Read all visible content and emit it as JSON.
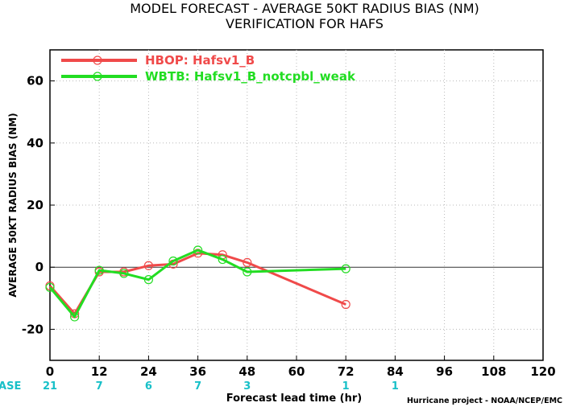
{
  "chart_data": {
    "type": "line",
    "title": "MODEL FORECAST - AVERAGE 50KT RADIUS BIAS (NM)",
    "subtitle": "VERIFICATION FOR HAFS",
    "xlabel": "Forecast lead time (hr)",
    "ylabel": "AVERAGE 50KT RADIUS BIAS (NM)",
    "xlim": [
      0,
      120
    ],
    "ylim": [
      -30,
      70
    ],
    "x_ticks": [
      0,
      12,
      24,
      36,
      48,
      60,
      72,
      84,
      96,
      108,
      120
    ],
    "y_ticks": [
      -20,
      0,
      20,
      40,
      60
    ],
    "grid": true,
    "legend_position": "top-left",
    "series": [
      {
        "name": "HBOP: Hafsv1_B",
        "color": "#f04a4a",
        "x": [
          0,
          6,
          12,
          18,
          24,
          30,
          36,
          42,
          48,
          72
        ],
        "y": [
          -6,
          -15,
          -1.5,
          -1.5,
          0.5,
          1,
          4.5,
          4,
          1.5,
          -12
        ]
      },
      {
        "name": "WBTB: Hafsv1_B_notcpbl_weak",
        "color": "#22dd22",
        "x": [
          0,
          6,
          12,
          18,
          24,
          30,
          36,
          42,
          48,
          72
        ],
        "y": [
          -6.5,
          -16,
          -1,
          -2,
          -4,
          2,
          5.5,
          2.5,
          -1.5,
          -0.5
        ]
      }
    ],
    "case_row": {
      "label": "#CASE",
      "color": "#18c0c8",
      "entries": [
        {
          "x": 0,
          "value": "21"
        },
        {
          "x": 12,
          "value": "7"
        },
        {
          "x": 24,
          "value": "6"
        },
        {
          "x": 36,
          "value": "7"
        },
        {
          "x": 48,
          "value": "3"
        },
        {
          "x": 72,
          "value": "1"
        },
        {
          "x": 84,
          "value": "1"
        }
      ]
    },
    "credit": "Hurricane project - NOAA/NCEP/EMC"
  }
}
